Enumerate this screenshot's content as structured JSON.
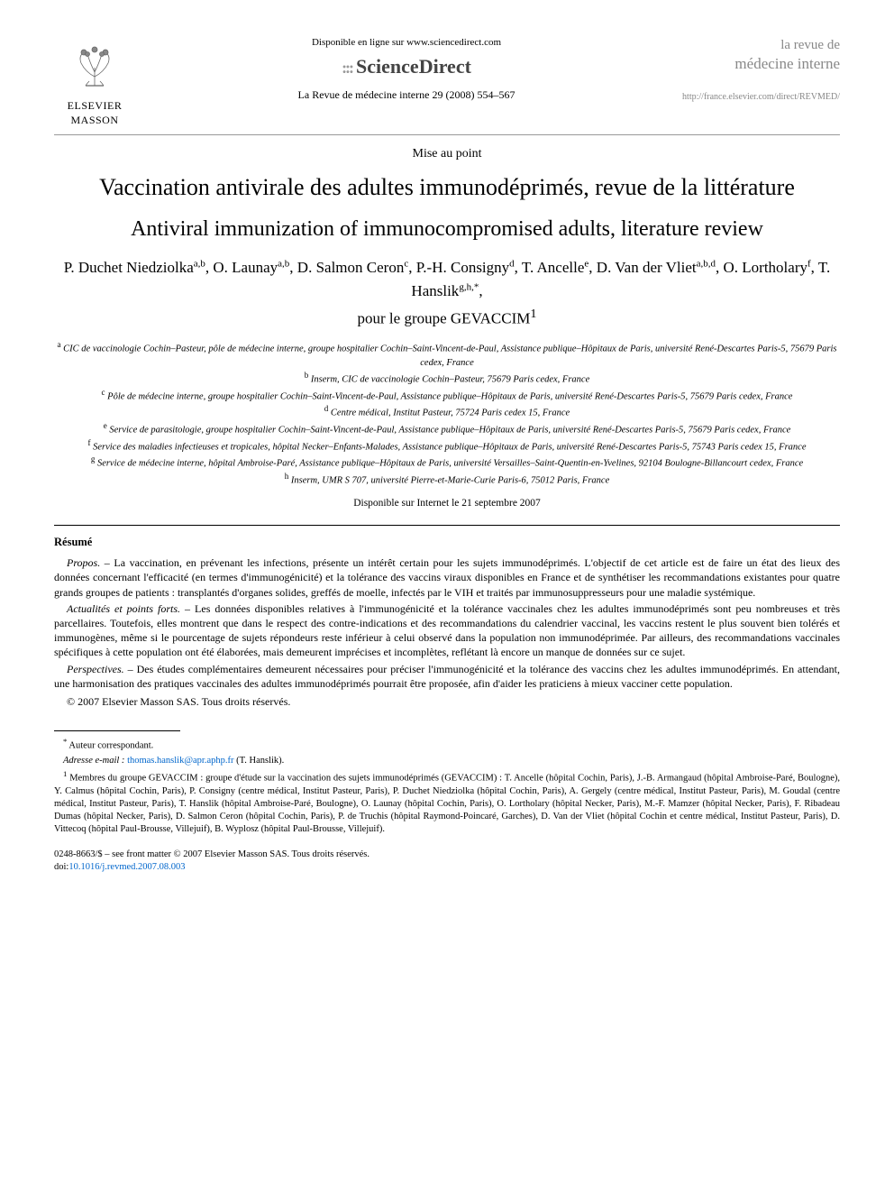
{
  "header": {
    "publisher_name": "ELSEVIER MASSON",
    "online_text": "Disponible en ligne sur www.sciencedirect.com",
    "sd_brand": "ScienceDirect",
    "citation": "La Revue de médecine interne 29 (2008) 554–567",
    "journal_line1": "la revue de",
    "journal_line2": "médecine interne",
    "journal_url": "http://france.elsevier.com/direct/REVMED/"
  },
  "article_type": "Mise au point",
  "title_fr": "Vaccination antivirale des adultes immunodéprimés, revue de la littérature",
  "title_en": "Antiviral immunization of immunocompromised adults, literature review",
  "authors_html": "P. Duchet Niedziolka|a,b|, O. Launay|a,b|, D. Salmon Ceron|c|, P.-H. Consigny|d|, T. Ancelle|e|, D. Van der Vliet|a,b,d|, O. Lortholary|f|, T. Hanslik|g,h,*|,",
  "group_line": "pour le groupe GEVACCIM",
  "group_sup": "1",
  "affiliations": [
    {
      "sup": "a",
      "text": "CIC de vaccinologie Cochin–Pasteur, pôle de médecine interne, groupe hospitalier Cochin–Saint-Vincent-de-Paul, Assistance publique–Hôpitaux de Paris, université René-Descartes Paris-5, 75679 Paris cedex, France"
    },
    {
      "sup": "b",
      "text": "Inserm, CIC de vaccinologie Cochin–Pasteur, 75679 Paris cedex, France"
    },
    {
      "sup": "c",
      "text": "Pôle de médecine interne, groupe hospitalier Cochin–Saint-Vincent-de-Paul, Assistance publique–Hôpitaux de Paris, université René-Descartes Paris-5, 75679 Paris cedex, France"
    },
    {
      "sup": "d",
      "text": "Centre médical, Institut Pasteur, 75724 Paris cedex 15, France"
    },
    {
      "sup": "e",
      "text": "Service de parasitologie, groupe hospitalier Cochin–Saint-Vincent-de-Paul, Assistance publique–Hôpitaux de Paris, université René-Descartes Paris-5, 75679 Paris cedex, France"
    },
    {
      "sup": "f",
      "text": "Service des maladies infectieuses et tropicales, hôpital Necker–Enfants-Malades, Assistance publique–Hôpitaux de Paris, université René-Descartes Paris-5, 75743 Paris cedex 15, France"
    },
    {
      "sup": "g",
      "text": "Service de médecine interne, hôpital Ambroise-Paré, Assistance publique–Hôpitaux de Paris, université Versailles–Saint-Quentin-en-Yvelines, 92104 Boulogne-Billancourt cedex, France"
    },
    {
      "sup": "h",
      "text": "Inserm, UMR S 707, université Pierre-et-Marie-Curie Paris-6, 75012 Paris, France"
    }
  ],
  "online_date": "Disponible sur Internet le 21 septembre 2007",
  "resume_head": "Résumé",
  "abstract": {
    "propos_label": "Propos. –",
    "propos": "La vaccination, en prévenant les infections, présente un intérêt certain pour les sujets immunodéprimés. L'objectif de cet article est de faire un état des lieux des données concernant l'efficacité (en termes d'immunogénicité) et la tolérance des vaccins viraux disponibles en France et de synthétiser les recommandations existantes pour quatre grands groupes de patients : transplantés d'organes solides, greffés de moelle, infectés par le VIH et traités par immunosuppresseurs pour une maladie systémique.",
    "actualites_label": "Actualités et points forts. –",
    "actualites": "Les données disponibles relatives à l'immunogénicité et la tolérance vaccinales chez les adultes immunodéprimés sont peu nombreuses et très parcellaires. Toutefois, elles montrent que dans le respect des contre-indications et des recommandations du calendrier vaccinal, les vaccins restent le plus souvent bien tolérés et immunogènes, même si le pourcentage de sujets répondeurs reste inférieur à celui observé dans la population non immunodéprimée. Par ailleurs, des recommandations vaccinales spécifiques à cette population ont été élaborées, mais demeurent imprécises et incomplètes, reflétant là encore un manque de données sur ce sujet.",
    "perspectives_label": "Perspectives. –",
    "perspectives": "Des études complémentaires demeurent nécessaires pour préciser l'immunogénicité et la tolérance des vaccins chez les adultes immunodéprimés. En attendant, une harmonisation des pratiques vaccinales des adultes immunodéprimés pourrait être proposée, afin d'aider les praticiens à mieux vacciner cette population."
  },
  "copyright_line": "© 2007 Elsevier Masson SAS. Tous droits réservés.",
  "footnotes": {
    "corr_symbol": "*",
    "corr": "Auteur correspondant.",
    "email_label": "Adresse e-mail :",
    "email": "thomas.hanslik@apr.aphp.fr",
    "email_suffix": "(T. Hanslik).",
    "group_sup": "1",
    "group": "Membres du groupe GEVACCIM : groupe d'étude sur la vaccination des sujets immunodéprimés (GEVACCIM) : T. Ancelle (hôpital Cochin, Paris), J.-B. Armangaud (hôpital Ambroise-Paré, Boulogne), Y. Calmus (hôpital Cochin, Paris), P. Consigny (centre médical, Institut Pasteur, Paris), P. Duchet Niedziolka (hôpital Cochin, Paris), A. Gergely (centre médical, Institut Pasteur, Paris), M. Goudal (centre médical, Institut Pasteur, Paris), T. Hanslik (hôpital Ambroise-Paré, Boulogne), O. Launay (hôpital Cochin, Paris), O. Lortholary (hôpital Necker, Paris), M.-F. Mamzer (hôpital Necker, Paris), F. Ribadeau Dumas (hôpital Necker, Paris), D. Salmon Ceron (hôpital Cochin, Paris), P. de Truchis (hôpital Raymond-Poincaré, Garches), D. Van der Vliet (hôpital Cochin et centre médical, Institut Pasteur, Paris), D. Vittecoq (hôpital Paul-Brousse, Villejuif), B. Wyplosz (hôpital Paul-Brousse, Villejuif)."
  },
  "footer": {
    "front_matter": "0248-8663/$ – see front matter © 2007 Elsevier Masson SAS. Tous droits réservés.",
    "doi_label": "doi:",
    "doi": "10.1016/j.revmed.2007.08.003"
  },
  "colors": {
    "link": "#0066cc",
    "text": "#000000",
    "rule": "#000000"
  }
}
